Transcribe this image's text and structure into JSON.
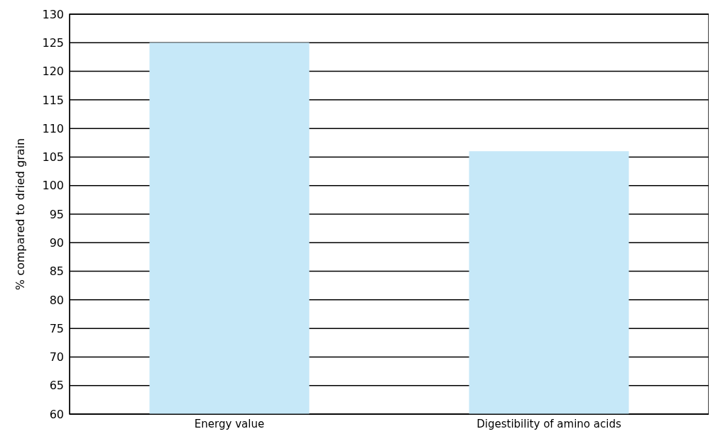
{
  "chart_data": {
    "type": "bar",
    "ylabel": "% compared to dried grain",
    "categories": [
      "Energy value",
      "Digestibility of amino acids"
    ],
    "values": [
      125,
      106
    ],
    "color": "#c6e8f8",
    "ylim": [
      60,
      130
    ],
    "yticks": [
      60,
      65,
      70,
      75,
      80,
      85,
      90,
      95,
      100,
      105,
      110,
      115,
      120,
      125,
      130
    ],
    "grid": "y"
  }
}
